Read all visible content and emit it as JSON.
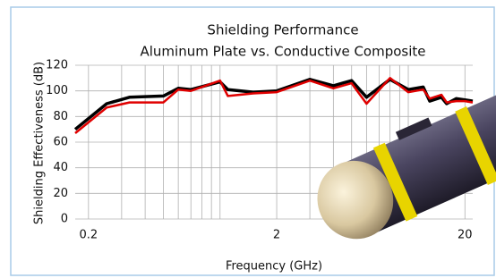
{
  "chart_data": {
    "type": "line",
    "title": "Shielding Performance",
    "subtitle": "Aluminum Plate vs. Conductive Composite",
    "x_label": "Frequency (GHz)",
    "y_label": "Shielding Effectiveness (dB)",
    "x": [
      0.17,
      0.25,
      0.33,
      0.5,
      0.6,
      0.7,
      1.0,
      1.1,
      1.5,
      2.0,
      3.0,
      4.0,
      5.0,
      6.0,
      8.0,
      10,
      12,
      13,
      15,
      16,
      18,
      20,
      22
    ],
    "series": [
      {
        "color": "#000000",
        "values": [
          70,
          90,
          95,
          96,
          102,
          101,
          107,
          101,
          99,
          100,
          109,
          104,
          108,
          95,
          109,
          101,
          103,
          92,
          95,
          90,
          94,
          93,
          92
        ]
      },
      {
        "color": "#e00000",
        "values": [
          67,
          87,
          91,
          91,
          101,
          100,
          108,
          96,
          98,
          99,
          108,
          102,
          106,
          90,
          110,
          99,
          101,
          94,
          97,
          91,
          92,
          92,
          91
        ]
      }
    ],
    "xlog": true,
    "xlim": [
      0.17,
      22
    ],
    "xticks": [
      0.2,
      2,
      20
    ],
    "xgrid": [
      0.2,
      0.3,
      0.4,
      0.5,
      0.6,
      0.7,
      0.8,
      0.9,
      1,
      2,
      3,
      4,
      5,
      6,
      7,
      8,
      9,
      10,
      20
    ],
    "ylim": [
      0,
      120
    ],
    "yticks": [
      0,
      20,
      40,
      60,
      80,
      100,
      120
    ],
    "grid": true
  }
}
